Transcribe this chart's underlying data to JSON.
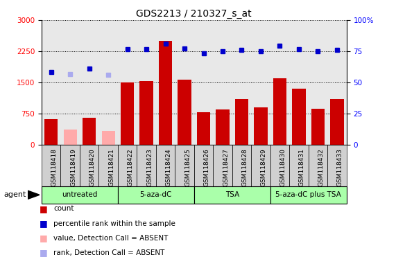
{
  "title": "GDS2213 / 210327_s_at",
  "samples": [
    "GSM118418",
    "GSM118419",
    "GSM118420",
    "GSM118421",
    "GSM118422",
    "GSM118423",
    "GSM118424",
    "GSM118425",
    "GSM118426",
    "GSM118427",
    "GSM118428",
    "GSM118429",
    "GSM118430",
    "GSM118431",
    "GSM118432",
    "GSM118433"
  ],
  "bar_values": [
    620,
    370,
    650,
    330,
    1500,
    1530,
    2500,
    1570,
    780,
    850,
    1100,
    900,
    1600,
    1350,
    870,
    1100
  ],
  "bar_absent": [
    false,
    true,
    false,
    true,
    false,
    false,
    false,
    false,
    false,
    false,
    false,
    false,
    false,
    false,
    false,
    false
  ],
  "bar_color_present": "#cc0000",
  "bar_color_absent": "#ffaaaa",
  "dot_values": [
    1750,
    1700,
    1830,
    1680,
    2300,
    2300,
    2430,
    2310,
    2200,
    2250,
    2290,
    2250,
    2380,
    2300,
    2250,
    2290
  ],
  "dot_absent": [
    false,
    true,
    false,
    true,
    false,
    false,
    false,
    false,
    false,
    false,
    false,
    false,
    false,
    false,
    false,
    false
  ],
  "dot_color_present": "#0000cc",
  "dot_color_absent": "#aaaaee",
  "ylim_left": [
    0,
    3000
  ],
  "ylim_right": [
    0,
    100
  ],
  "yticks_left": [
    0,
    750,
    1500,
    2250,
    3000
  ],
  "yticks_right": [
    0,
    25,
    50,
    75,
    100
  ],
  "groups": [
    {
      "label": "untreated",
      "start": 0,
      "end": 4
    },
    {
      "label": "5-aza-dC",
      "start": 4,
      "end": 8
    },
    {
      "label": "TSA",
      "start": 8,
      "end": 12
    },
    {
      "label": "5-aza-dC plus TSA",
      "start": 12,
      "end": 16
    }
  ],
  "group_color": "#aaffaa",
  "legend_items": [
    {
      "label": "count",
      "color": "#cc0000"
    },
    {
      "label": "percentile rank within the sample",
      "color": "#0000cc"
    },
    {
      "label": "value, Detection Call = ABSENT",
      "color": "#ffaaaa"
    },
    {
      "label": "rank, Detection Call = ABSENT",
      "color": "#aaaaee"
    }
  ],
  "agent_label": "agent",
  "plot_bg_color": "#e8e8e8",
  "tick_box_color": "#d0d0d0"
}
